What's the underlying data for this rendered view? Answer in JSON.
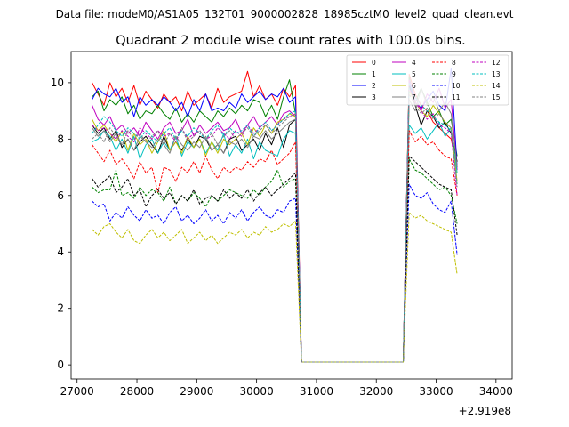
{
  "suptitle": "Data file: modeM0/AS1A05_132T01_9000002828_18985cztM0_level2_quad_clean.evt",
  "chart_data": {
    "type": "line",
    "title": "Quadrant 2 module wise count rates with 100.0s bins.",
    "xlabel": "",
    "ylabel": "",
    "x_offset_label": "+2.919e8",
    "xlim": [
      26900,
      34270
    ],
    "ylim": [
      -0.5,
      11.1
    ],
    "x_ticks": [
      27000,
      28000,
      29000,
      30000,
      31000,
      32000,
      33000,
      34000
    ],
    "y_ticks": [
      0,
      2,
      4,
      6,
      8,
      10
    ],
    "grid": false,
    "legend_position": "top-right",
    "x_start": 27250,
    "x_step": 100,
    "series": [
      {
        "name": "0",
        "color": "#ff0000",
        "style": "solid",
        "values": [
          10.0,
          9.6,
          9.2,
          10.0,
          9.5,
          9.8,
          9.3,
          9.9,
          9.2,
          9.7,
          9.4,
          9.1,
          9.6,
          9.3,
          9.5,
          9.0,
          9.7,
          9.2,
          9.4,
          9.6,
          9.1,
          9.8,
          9.3,
          9.5,
          9.6,
          9.7,
          10.4,
          9.5,
          9.9,
          9.4,
          9.6,
          9.2,
          9.8,
          9.5,
          9.9,
          0.1,
          0.1,
          0.1,
          0.1,
          0.1,
          0.1,
          0.1,
          0.1,
          0.1,
          0.1,
          0.1,
          0.1,
          0.1,
          0.1,
          0.1,
          0.1,
          0.1,
          0.1,
          10.3,
          9.6,
          9.2,
          9.0,
          8.6,
          8.4,
          8.2,
          8.0,
          7.0
        ]
      },
      {
        "name": "1",
        "color": "#008000",
        "style": "solid",
        "values": [
          9.5,
          9.7,
          9.0,
          9.4,
          9.2,
          9.5,
          8.9,
          9.2,
          8.7,
          9.0,
          8.9,
          9.2,
          8.9,
          8.7,
          9.1,
          8.6,
          8.9,
          8.6,
          9.0,
          8.8,
          8.6,
          9.0,
          8.8,
          9.1,
          8.9,
          9.2,
          9.0,
          9.4,
          9.3,
          8.8,
          9.2,
          8.7,
          9.5,
          10.1,
          8.9,
          0.1,
          0.1,
          0.1,
          0.1,
          0.1,
          0.1,
          0.1,
          0.1,
          0.1,
          0.1,
          0.1,
          0.1,
          0.1,
          0.1,
          0.1,
          0.1,
          0.1,
          0.1,
          10.2,
          9.3,
          9.8,
          9.3,
          8.8,
          9.0,
          8.5,
          8.7,
          7.4
        ]
      },
      {
        "name": "2",
        "color": "#0000ff",
        "style": "solid",
        "values": [
          9.4,
          9.8,
          9.6,
          9.5,
          9.8,
          9.3,
          9.5,
          8.8,
          9.5,
          9.2,
          9.4,
          9.2,
          9.5,
          9.3,
          9.0,
          9.3,
          8.8,
          9.4,
          9.0,
          9.6,
          9.0,
          9.1,
          9.0,
          9.3,
          9.1,
          9.6,
          9.3,
          9.5,
          9.7,
          9.4,
          9.6,
          9.5,
          9.8,
          9.3,
          9.5,
          0.1,
          0.1,
          0.1,
          0.1,
          0.1,
          0.1,
          0.1,
          0.1,
          0.1,
          0.1,
          0.1,
          0.1,
          0.1,
          0.1,
          0.1,
          0.1,
          0.1,
          0.1,
          10.0,
          9.3,
          9.1,
          9.4,
          9.7,
          9.2,
          9.0,
          10.5,
          7.0
        ]
      },
      {
        "name": "3",
        "color": "#000000",
        "style": "solid",
        "values": [
          8.5,
          8.2,
          8.4,
          8.0,
          8.3,
          7.7,
          8.0,
          7.6,
          7.9,
          8.1,
          7.8,
          7.5,
          8.1,
          7.6,
          7.9,
          7.6,
          8.0,
          7.7,
          8.1,
          8.0,
          7.6,
          7.8,
          7.5,
          8.0,
          8.1,
          7.6,
          7.8,
          8.0,
          7.6,
          8.2,
          7.8,
          8.4,
          7.7,
          8.5,
          8.7,
          0.1,
          0.1,
          0.1,
          0.1,
          0.1,
          0.1,
          0.1,
          0.1,
          0.1,
          0.1,
          0.1,
          0.1,
          0.1,
          0.1,
          0.1,
          0.1,
          0.1,
          0.1,
          9.9,
          9.2,
          8.5,
          9.0,
          8.8,
          8.4,
          8.6,
          8.2,
          7.2
        ]
      },
      {
        "name": "4",
        "color": "#bf00bf",
        "style": "solid",
        "values": [
          9.2,
          8.7,
          8.5,
          8.8,
          8.3,
          8.5,
          8.2,
          8.4,
          8.1,
          8.6,
          8.3,
          8.0,
          8.4,
          8.6,
          8.2,
          8.3,
          8.7,
          8.1,
          8.5,
          8.2,
          8.4,
          8.6,
          8.3,
          8.4,
          8.7,
          8.2,
          8.5,
          8.8,
          8.4,
          8.6,
          8.8,
          8.5,
          8.9,
          9.0,
          8.8,
          0.1,
          0.1,
          0.1,
          0.1,
          0.1,
          0.1,
          0.1,
          0.1,
          0.1,
          0.1,
          0.1,
          0.1,
          0.1,
          0.1,
          0.1,
          0.1,
          0.1,
          0.1,
          10.1,
          9.5,
          9.0,
          9.6,
          9.3,
          9.8,
          9.1,
          9.4,
          6.9
        ]
      },
      {
        "name": "5",
        "color": "#00bfbf",
        "style": "solid",
        "values": [
          7.9,
          8.0,
          8.3,
          8.1,
          7.6,
          8.0,
          7.5,
          8.1,
          7.3,
          7.8,
          8.0,
          7.5,
          7.9,
          7.6,
          8.1,
          7.4,
          7.9,
          7.7,
          8.0,
          7.5,
          7.9,
          7.6,
          8.2,
          7.4,
          7.8,
          7.5,
          8.0,
          7.3,
          7.9,
          7.6,
          7.5,
          7.4,
          8.0,
          8.3,
          8.2,
          0.1,
          0.1,
          0.1,
          0.1,
          0.1,
          0.1,
          0.1,
          0.1,
          0.1,
          0.1,
          0.1,
          0.1,
          0.1,
          0.1,
          0.1,
          0.1,
          0.1,
          0.1,
          8.5,
          8.2,
          8.4,
          8.0,
          8.3,
          8.6,
          8.1,
          8.4,
          6.8
        ]
      },
      {
        "name": "6",
        "color": "#bfbf00",
        "style": "solid",
        "values": [
          8.7,
          8.3,
          8.5,
          8.2,
          7.9,
          8.3,
          7.6,
          8.2,
          7.8,
          8.0,
          7.5,
          7.9,
          8.3,
          7.6,
          7.9,
          7.5,
          8.1,
          7.7,
          8.0,
          7.4,
          7.9,
          7.5,
          8.0,
          7.8,
          8.0,
          8.2,
          7.8,
          8.4,
          8.1,
          8.5,
          8.2,
          8.6,
          8.7,
          8.9,
          8.8,
          0.1,
          0.1,
          0.1,
          0.1,
          0.1,
          0.1,
          0.1,
          0.1,
          0.1,
          0.1,
          0.1,
          0.1,
          0.1,
          0.1,
          0.1,
          0.1,
          0.1,
          0.1,
          9.7,
          9.3,
          9.0,
          8.8,
          9.2,
          8.9,
          8.6,
          8.4,
          6.5
        ]
      },
      {
        "name": "7",
        "color": "#808080",
        "style": "solid",
        "values": [
          8.4,
          8.1,
          8.3,
          7.9,
          8.2,
          7.8,
          8.0,
          7.6,
          8.1,
          7.9,
          7.7,
          8.0,
          7.8,
          7.5,
          8.1,
          7.8,
          7.6,
          7.9,
          7.7,
          8.1,
          7.6,
          7.8,
          7.5,
          7.9,
          7.8,
          8.0,
          7.7,
          8.1,
          8.0,
          8.3,
          8.0,
          8.2,
          8.4,
          8.6,
          8.7,
          0.1,
          0.1,
          0.1,
          0.1,
          0.1,
          0.1,
          0.1,
          0.1,
          0.1,
          0.1,
          0.1,
          0.1,
          0.1,
          0.1,
          0.1,
          0.1,
          0.1,
          0.1,
          9.4,
          9.0,
          9.8,
          9.2,
          9.5,
          9.0,
          9.3,
          8.9,
          7.0
        ]
      },
      {
        "name": "8",
        "color": "#ff0000",
        "style": "dashed",
        "values": [
          7.8,
          7.5,
          7.2,
          7.6,
          7.1,
          7.3,
          7.0,
          6.6,
          7.2,
          6.8,
          7.0,
          6.1,
          7.0,
          6.9,
          6.5,
          7.0,
          6.8,
          7.2,
          6.8,
          7.4,
          6.9,
          6.6,
          7.0,
          6.8,
          7.0,
          6.9,
          7.2,
          7.0,
          7.3,
          7.2,
          7.6,
          7.1,
          7.3,
          7.5,
          7.9,
          0.1,
          0.1,
          0.1,
          0.1,
          0.1,
          0.1,
          0.1,
          0.1,
          0.1,
          0.1,
          0.1,
          0.1,
          0.1,
          0.1,
          0.1,
          0.1,
          0.1,
          0.1,
          8.3,
          7.9,
          8.1,
          7.8,
          7.9,
          7.6,
          7.4,
          7.3,
          6.0
        ]
      },
      {
        "name": "9",
        "color": "#008000",
        "style": "dashed",
        "values": [
          6.3,
          6.1,
          6.2,
          6.2,
          6.9,
          6.0,
          6.1,
          5.9,
          6.3,
          6.0,
          6.2,
          6.1,
          5.8,
          6.3,
          5.7,
          6.0,
          5.8,
          6.1,
          5.9,
          5.6,
          6.0,
          5.8,
          6.0,
          6.2,
          6.1,
          6.0,
          5.9,
          6.2,
          6.0,
          6.3,
          6.5,
          6.9,
          6.3,
          6.5,
          6.6,
          0.1,
          0.1,
          0.1,
          0.1,
          0.1,
          0.1,
          0.1,
          0.1,
          0.1,
          0.1,
          0.1,
          0.1,
          0.1,
          0.1,
          0.1,
          0.1,
          0.1,
          0.1,
          7.3,
          6.9,
          6.8,
          6.6,
          6.4,
          6.2,
          6.3,
          6.0,
          5.0
        ]
      },
      {
        "name": "10",
        "color": "#0000ff",
        "style": "dashed",
        "values": [
          5.8,
          5.6,
          5.7,
          5.1,
          5.4,
          5.2,
          5.6,
          5.3,
          5.1,
          5.5,
          5.2,
          5.3,
          5.0,
          5.4,
          5.6,
          5.1,
          5.3,
          5.0,
          5.2,
          5.5,
          5.1,
          5.3,
          5.0,
          5.4,
          5.2,
          5.5,
          5.1,
          5.4,
          5.6,
          5.3,
          5.2,
          5.5,
          5.4,
          5.8,
          5.9,
          0.1,
          0.1,
          0.1,
          0.1,
          0.1,
          0.1,
          0.1,
          0.1,
          0.1,
          0.1,
          0.1,
          0.1,
          0.1,
          0.1,
          0.1,
          0.1,
          0.1,
          0.1,
          6.4,
          6.0,
          5.9,
          6.1,
          5.7,
          5.5,
          5.4,
          5.8,
          3.9
        ]
      },
      {
        "name": "11",
        "color": "#000000",
        "style": "dashed",
        "values": [
          6.6,
          6.3,
          6.5,
          6.7,
          6.1,
          6.3,
          6.6,
          6.0,
          6.2,
          5.6,
          6.0,
          6.2,
          5.9,
          6.1,
          5.7,
          6.0,
          5.8,
          6.2,
          5.7,
          5.9,
          6.0,
          5.8,
          6.2,
          5.9,
          6.1,
          5.9,
          6.2,
          5.8,
          6.1,
          6.3,
          6.0,
          6.2,
          6.4,
          6.6,
          6.8,
          0.1,
          0.1,
          0.1,
          0.1,
          0.1,
          0.1,
          0.1,
          0.1,
          0.1,
          0.1,
          0.1,
          0.1,
          0.1,
          0.1,
          0.1,
          0.1,
          0.1,
          0.1,
          7.4,
          7.2,
          7.0,
          6.8,
          6.6,
          6.4,
          6.3,
          6.2,
          4.6
        ]
      },
      {
        "name": "12",
        "color": "#bf00bf",
        "style": "dashed",
        "values": [
          8.5,
          8.3,
          8.4,
          8.2,
          8.0,
          8.3,
          8.1,
          7.9,
          8.4,
          8.2,
          8.0,
          8.3,
          8.1,
          8.2,
          7.9,
          8.4,
          8.0,
          8.2,
          8.3,
          8.0,
          8.1,
          8.4,
          8.2,
          8.0,
          8.3,
          8.1,
          8.5,
          8.2,
          8.4,
          8.6,
          8.3,
          8.5,
          8.7,
          8.8,
          8.9,
          0.1,
          0.1,
          0.1,
          0.1,
          0.1,
          0.1,
          0.1,
          0.1,
          0.1,
          0.1,
          0.1,
          0.1,
          0.1,
          0.1,
          0.1,
          0.1,
          0.1,
          0.1,
          9.8,
          9.3,
          9.0,
          8.7,
          8.9,
          8.5,
          8.4,
          8.2,
          6.0
        ]
      },
      {
        "name": "13",
        "color": "#00bfbf",
        "style": "dashed",
        "values": [
          8.2,
          8.5,
          8.8,
          8.6,
          8.3,
          8.1,
          8.4,
          8.2,
          8.0,
          8.3,
          8.1,
          7.9,
          8.2,
          8.4,
          8.0,
          8.3,
          8.1,
          8.4,
          8.2,
          8.0,
          8.3,
          8.5,
          8.1,
          8.4,
          8.2,
          8.3,
          8.5,
          8.1,
          8.4,
          8.6,
          8.3,
          8.5,
          8.7,
          8.9,
          9.0,
          0.1,
          0.1,
          0.1,
          0.1,
          0.1,
          0.1,
          0.1,
          0.1,
          0.1,
          0.1,
          0.1,
          0.1,
          0.1,
          0.1,
          0.1,
          0.1,
          0.1,
          0.1,
          10.0,
          9.5,
          9.2,
          9.0,
          8.8,
          8.6,
          8.5,
          8.3,
          6.4
        ]
      },
      {
        "name": "14",
        "color": "#bfbf00",
        "style": "dashed",
        "values": [
          4.8,
          4.6,
          4.9,
          5.0,
          4.7,
          4.5,
          4.8,
          4.4,
          4.3,
          4.6,
          4.8,
          4.5,
          4.7,
          4.4,
          4.6,
          4.8,
          4.3,
          4.5,
          4.7,
          4.4,
          4.6,
          4.3,
          4.5,
          4.7,
          4.6,
          4.8,
          4.5,
          4.7,
          4.6,
          4.9,
          4.7,
          4.8,
          5.0,
          4.9,
          5.1,
          0.1,
          0.1,
          0.1,
          0.1,
          0.1,
          0.1,
          0.1,
          0.1,
          0.1,
          0.1,
          0.1,
          0.1,
          0.1,
          0.1,
          0.1,
          0.1,
          0.1,
          0.1,
          5.4,
          5.2,
          5.3,
          5.1,
          5.0,
          4.9,
          4.8,
          4.7,
          3.2
        ]
      },
      {
        "name": "15",
        "color": "#808080",
        "style": "dashed",
        "values": [
          8.0,
          8.2,
          7.9,
          8.4,
          8.1,
          7.8,
          8.3,
          8.0,
          8.2,
          7.9,
          8.1,
          8.3,
          7.8,
          8.2,
          8.0,
          8.4,
          7.9,
          8.1,
          8.3,
          8.0,
          8.2,
          7.8,
          8.1,
          8.3,
          8.0,
          8.2,
          8.4,
          8.1,
          8.3,
          8.5,
          8.2,
          8.4,
          8.6,
          8.8,
          8.9,
          0.1,
          0.1,
          0.1,
          0.1,
          0.1,
          0.1,
          0.1,
          0.1,
          0.1,
          0.1,
          0.1,
          0.1,
          0.1,
          0.1,
          0.1,
          0.1,
          0.1,
          0.1,
          9.6,
          9.2,
          8.9,
          9.1,
          8.7,
          8.9,
          8.6,
          8.4,
          6.3
        ]
      }
    ]
  }
}
